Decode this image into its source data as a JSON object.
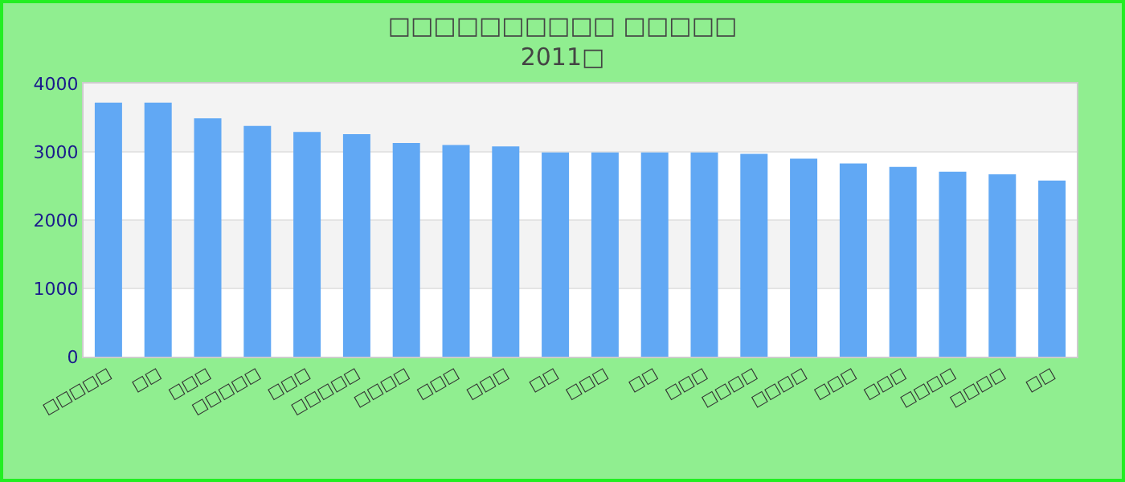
{
  "chart_data": {
    "type": "bar",
    "title": "□□□□□□□□□□ □□□□□",
    "subtitle": "2011□",
    "categories": [
      "□□□□□",
      "□□",
      "□□□",
      "□□□□□",
      "□□□",
      "□□□□□",
      "□□□□",
      "□□□",
      "□□□",
      "□□",
      "□□□",
      "□□",
      "□□□",
      "□□□□",
      "□□□□",
      "□□□",
      "□□□",
      "□□□□",
      "□□□□",
      "□□"
    ],
    "values": [
      3720,
      3720,
      3490,
      3380,
      3290,
      3260,
      3130,
      3100,
      3080,
      2990,
      2990,
      2990,
      2990,
      2970,
      2900,
      2830,
      2780,
      2710,
      2670,
      2580
    ],
    "color": "#61a8f4",
    "ylim": [
      0,
      4000
    ],
    "yticks": [
      0,
      1000,
      2000,
      3000,
      4000
    ],
    "grid": "y"
  }
}
